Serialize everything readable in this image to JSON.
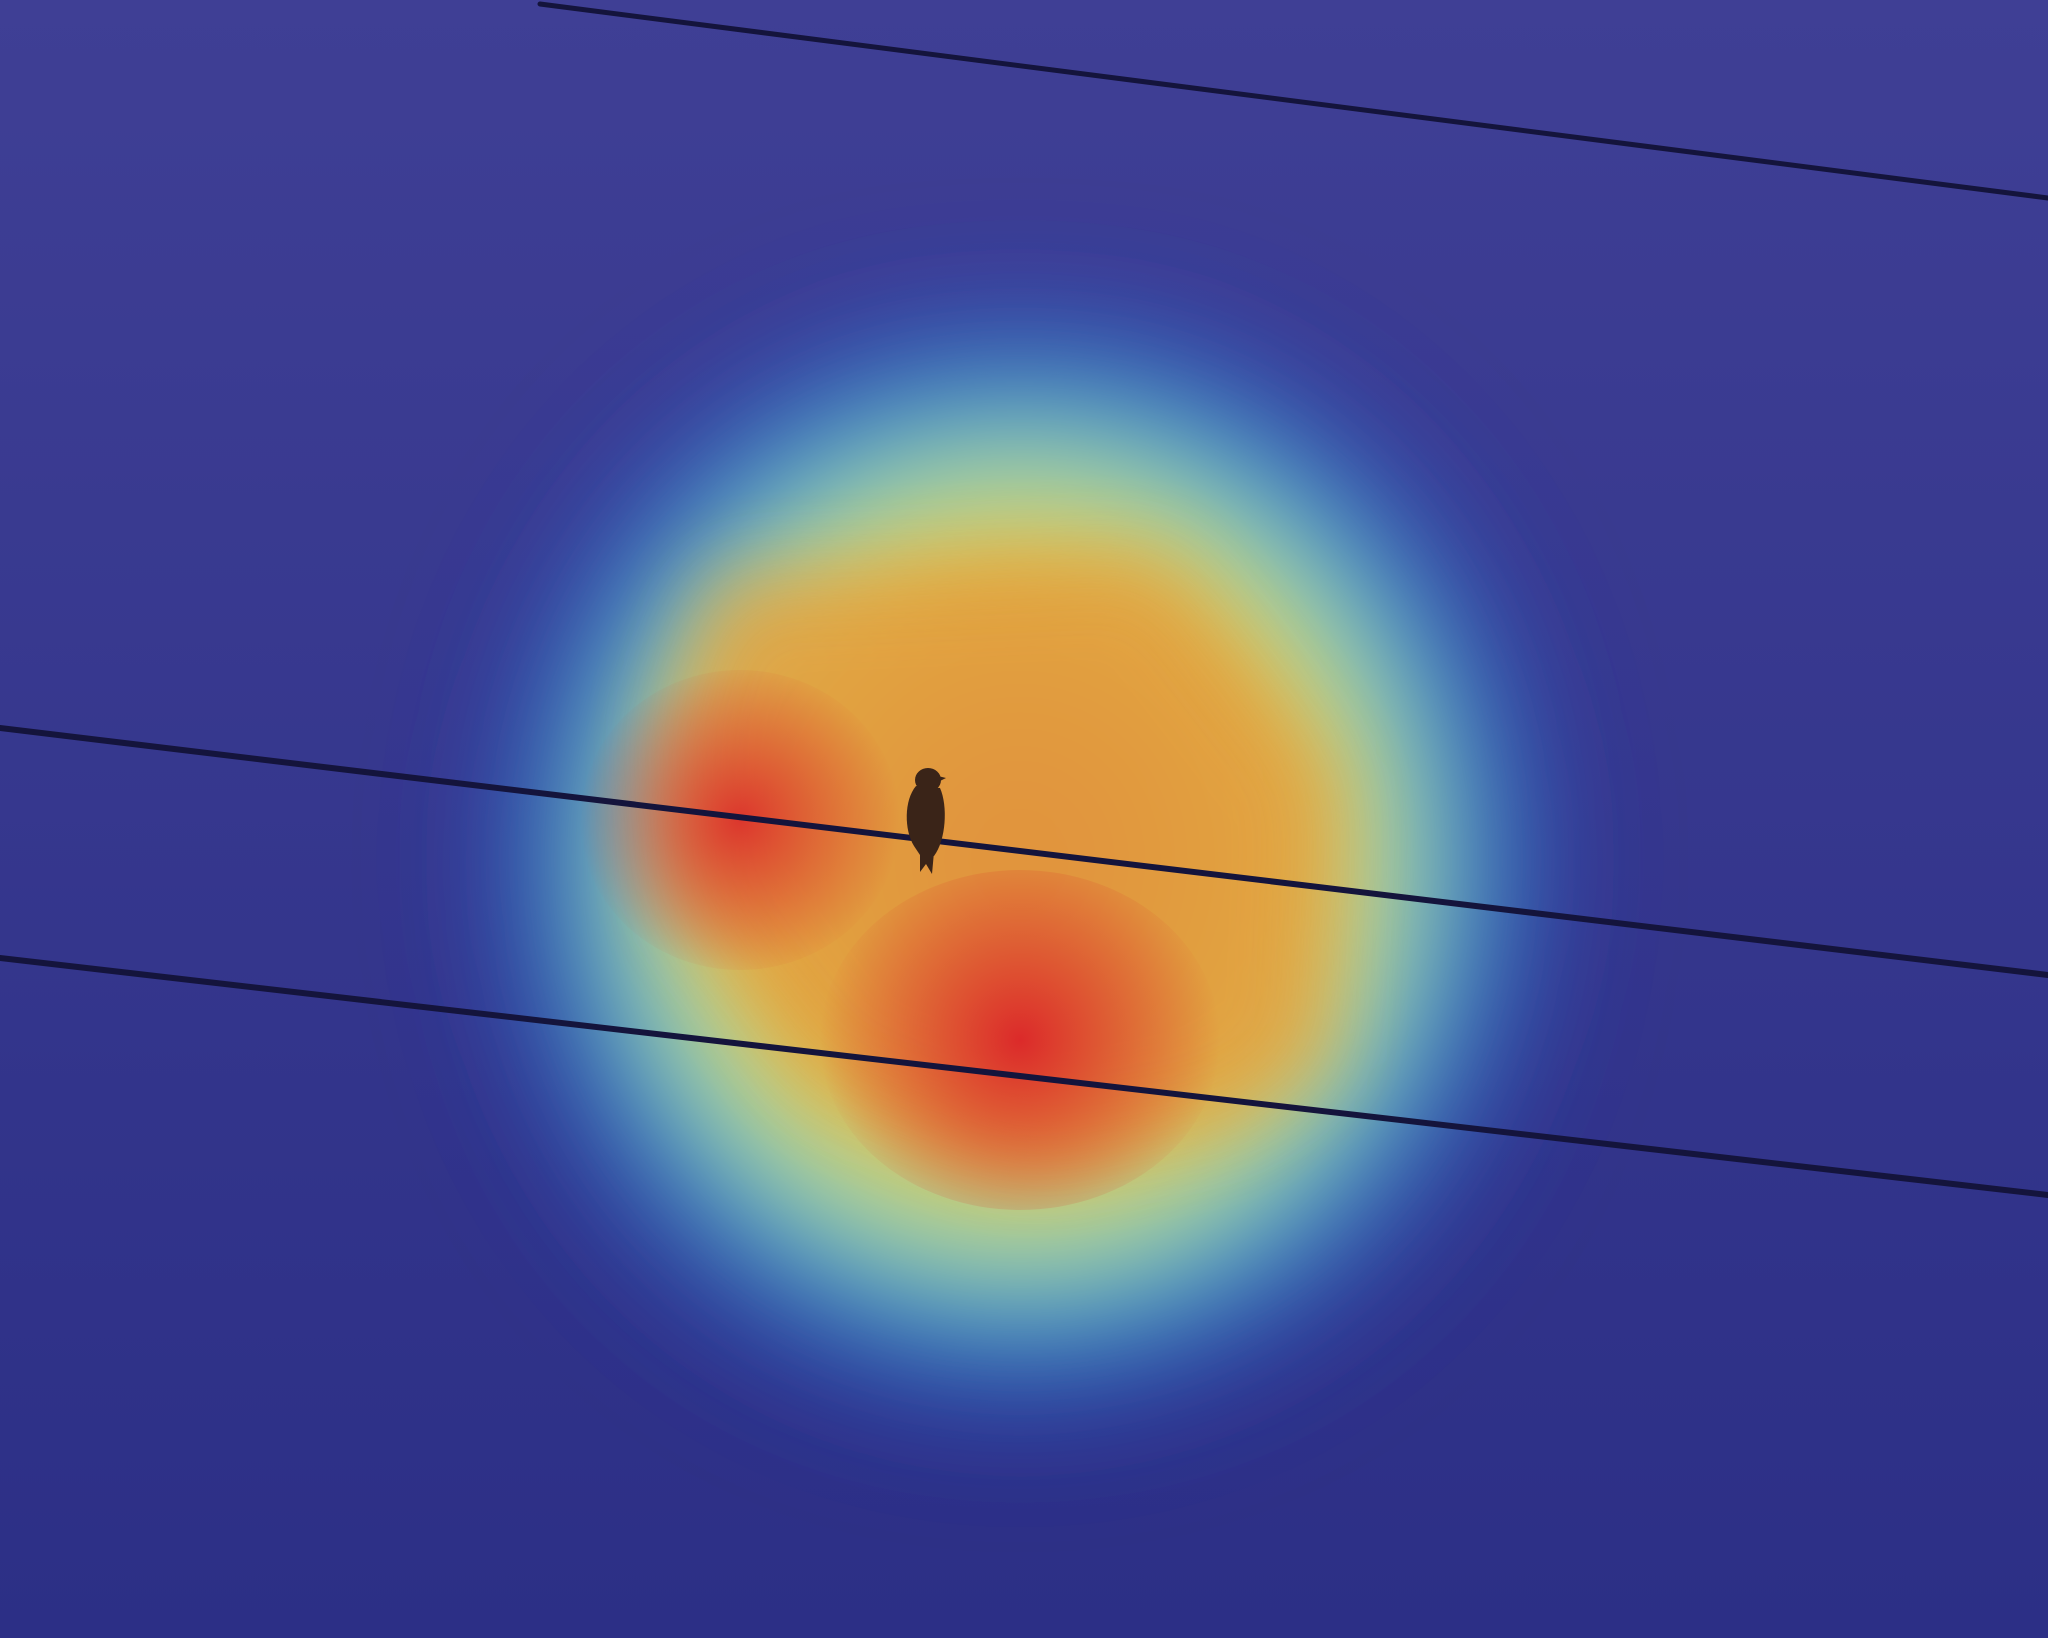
{
  "image": {
    "kind": "photo-with-attention-heatmap-overlay",
    "subject": "bird-on-wire",
    "colors": {
      "background_low": "#2c2f86",
      "background_high": "#3f3f95",
      "heat_blue": "#2c3fe0",
      "heat_cyan": "#38dcd8",
      "heat_yellow": "#e8e040",
      "heat_orange": "#e2a040",
      "heat_red": "#dc2a2a",
      "wire": "#14143c",
      "bird": "#3a2418"
    },
    "heatmap": {
      "peak_count": 2,
      "peak_intensity": 1.0
    },
    "wire_count": 3
  }
}
